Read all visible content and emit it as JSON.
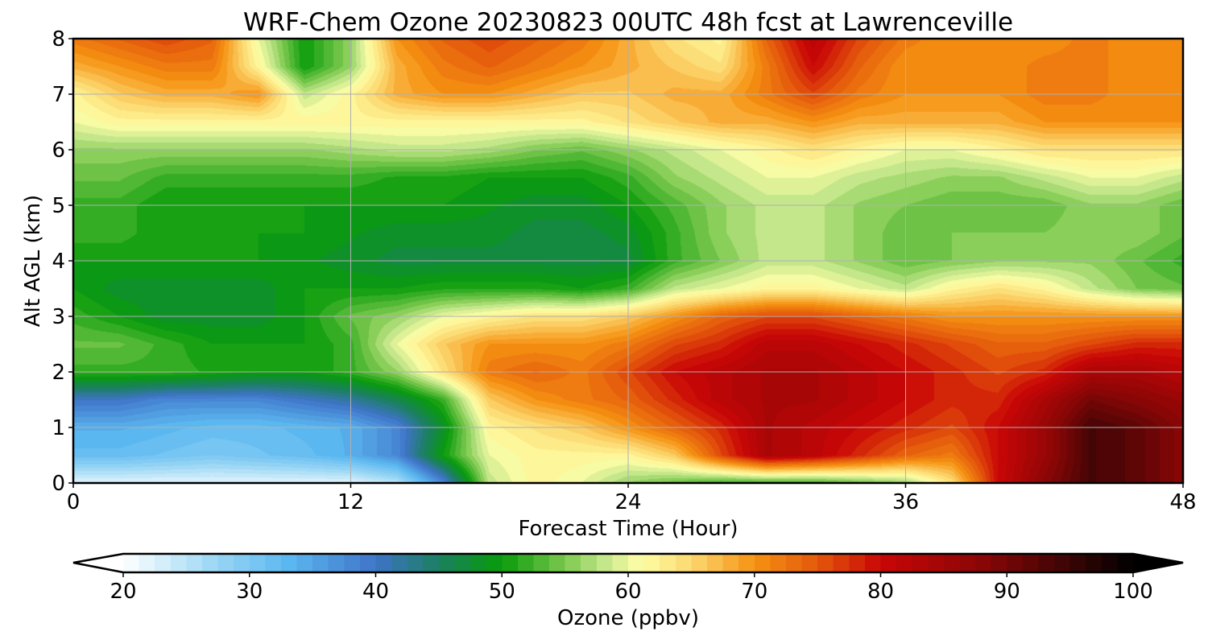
{
  "chart_data": {
    "type": "heatmap",
    "title": "WRF-Chem Ozone  20230823 00UTC 48h fcst at Lawrenceville",
    "xlabel": "Forecast Time (Hour)",
    "ylabel": "Alt AGL (km)",
    "xlim": [
      0,
      48
    ],
    "ylim": [
      0,
      8
    ],
    "x_ticks": [
      0,
      12,
      24,
      36,
      48
    ],
    "y_ticks": [
      0,
      1,
      2,
      3,
      4,
      5,
      6,
      7,
      8
    ],
    "grid": true,
    "x": [
      0,
      2,
      4,
      6,
      8,
      10,
      12,
      14,
      16,
      18,
      20,
      22,
      24,
      26,
      28,
      30,
      32,
      34,
      36,
      38,
      40,
      42,
      44,
      46,
      48
    ],
    "y": [
      0,
      0.5,
      1,
      1.5,
      2,
      2.5,
      3,
      3.5,
      4,
      4.5,
      5,
      5.5,
      6,
      6.5,
      7,
      7.5,
      8
    ],
    "z_rows_by_altitude": [
      [
        22,
        22,
        22,
        22,
        22,
        22,
        22,
        25,
        38,
        58,
        62,
        60,
        56,
        54,
        52,
        52,
        52,
        54,
        56,
        64,
        80,
        88,
        94,
        92,
        88
      ],
      [
        32,
        32,
        31,
        30,
        31,
        32,
        34,
        38,
        50,
        60,
        62,
        62,
        62,
        66,
        76,
        84,
        82,
        78,
        74,
        72,
        80,
        86,
        94,
        92,
        88
      ],
      [
        34,
        34,
        33,
        32,
        32,
        33,
        34,
        38,
        48,
        62,
        64,
        66,
        70,
        74,
        78,
        84,
        82,
        80,
        78,
        76,
        80,
        86,
        94,
        92,
        88
      ],
      [
        40,
        40,
        38,
        38,
        38,
        40,
        42,
        46,
        52,
        66,
        70,
        72,
        74,
        78,
        82,
        84,
        84,
        82,
        80,
        78,
        78,
        84,
        90,
        88,
        86
      ],
      [
        52,
        52,
        52,
        51,
        50,
        50,
        52,
        56,
        64,
        72,
        74,
        72,
        76,
        80,
        82,
        84,
        84,
        82,
        80,
        78,
        76,
        78,
        84,
        84,
        82
      ],
      [
        54,
        54,
        52,
        50,
        50,
        50,
        52,
        60,
        66,
        70,
        70,
        70,
        72,
        76,
        78,
        82,
        82,
        80,
        78,
        76,
        74,
        74,
        76,
        78,
        78
      ],
      [
        52,
        50,
        48,
        48,
        48,
        50,
        54,
        56,
        60,
        62,
        64,
        64,
        66,
        70,
        74,
        76,
        76,
        74,
        72,
        70,
        70,
        70,
        70,
        70,
        70
      ],
      [
        50,
        48,
        48,
        48,
        48,
        50,
        50,
        50,
        51,
        51,
        51,
        50,
        52,
        58,
        60,
        62,
        62,
        60,
        58,
        62,
        64,
        62,
        58,
        55,
        54
      ],
      [
        50,
        50,
        50,
        50,
        50,
        49,
        48,
        47,
        47,
        47,
        47,
        47,
        47,
        52,
        55,
        58,
        58,
        56,
        54,
        55,
        56,
        56,
        56,
        54,
        52
      ],
      [
        52,
        52,
        50,
        50,
        50,
        50,
        49,
        48,
        48,
        48,
        47,
        47,
        48,
        52,
        56,
        58,
        58,
        56,
        54,
        55,
        55,
        55,
        56,
        56,
        54
      ],
      [
        52,
        52,
        50,
        50,
        50,
        50,
        50,
        50,
        50,
        49,
        48,
        48,
        50,
        53,
        56,
        58,
        58,
        56,
        55,
        54,
        54,
        54,
        56,
        56,
        54
      ],
      [
        54,
        54,
        52,
        52,
        52,
        52,
        52,
        51,
        51,
        50,
        50,
        50,
        52,
        56,
        58,
        60,
        60,
        58,
        57,
        56,
        56,
        58,
        60,
        60,
        58
      ],
      [
        56,
        56,
        56,
        56,
        56,
        56,
        57,
        58,
        58,
        57,
        55,
        54,
        56,
        58,
        60,
        62,
        64,
        62,
        60,
        60,
        62,
        64,
        64,
        64,
        64
      ],
      [
        60,
        62,
        62,
        62,
        62,
        62,
        62,
        62,
        62,
        62,
        62,
        62,
        64,
        66,
        68,
        68,
        70,
        68,
        68,
        68,
        68,
        70,
        70,
        70,
        70
      ],
      [
        62,
        66,
        68,
        68,
        70,
        58,
        62,
        68,
        70,
        70,
        68,
        66,
        66,
        68,
        68,
        72,
        76,
        72,
        70,
        70,
        70,
        72,
        72,
        70,
        70
      ],
      [
        68,
        70,
        72,
        72,
        62,
        50,
        56,
        68,
        72,
        74,
        72,
        70,
        68,
        66,
        64,
        72,
        80,
        74,
        70,
        70,
        70,
        72,
        72,
        70,
        70
      ],
      [
        72,
        74,
        76,
        74,
        60,
        50,
        56,
        70,
        74,
        76,
        74,
        72,
        68,
        64,
        62,
        74,
        82,
        76,
        72,
        70,
        70,
        70,
        72,
        70,
        70
      ]
    ],
    "colorbar": {
      "label": "Ozone  (ppbv)",
      "min": 20,
      "max": 100,
      "extend": "both",
      "tick_labels": [
        "20",
        "30",
        "40",
        "50",
        "60",
        "70",
        "80",
        "90",
        "100"
      ],
      "colormap": [
        {
          "v": 20,
          "c": "#ffffff"
        },
        {
          "v": 27,
          "c": "#9ed8f5"
        },
        {
          "v": 33,
          "c": "#5bb8f0"
        },
        {
          "v": 40,
          "c": "#3f74c8"
        },
        {
          "v": 45,
          "c": "#1a7f60"
        },
        {
          "v": 50,
          "c": "#089b0a"
        },
        {
          "v": 55,
          "c": "#7cc94e"
        },
        {
          "v": 58,
          "c": "#c2e68a"
        },
        {
          "v": 61,
          "c": "#fffea6"
        },
        {
          "v": 65,
          "c": "#fcd870"
        },
        {
          "v": 70,
          "c": "#f59212"
        },
        {
          "v": 75,
          "c": "#e4580c"
        },
        {
          "v": 80,
          "c": "#c90606"
        },
        {
          "v": 88,
          "c": "#8a0606"
        },
        {
          "v": 95,
          "c": "#3a0505"
        },
        {
          "v": 100,
          "c": "#000000"
        }
      ]
    }
  }
}
